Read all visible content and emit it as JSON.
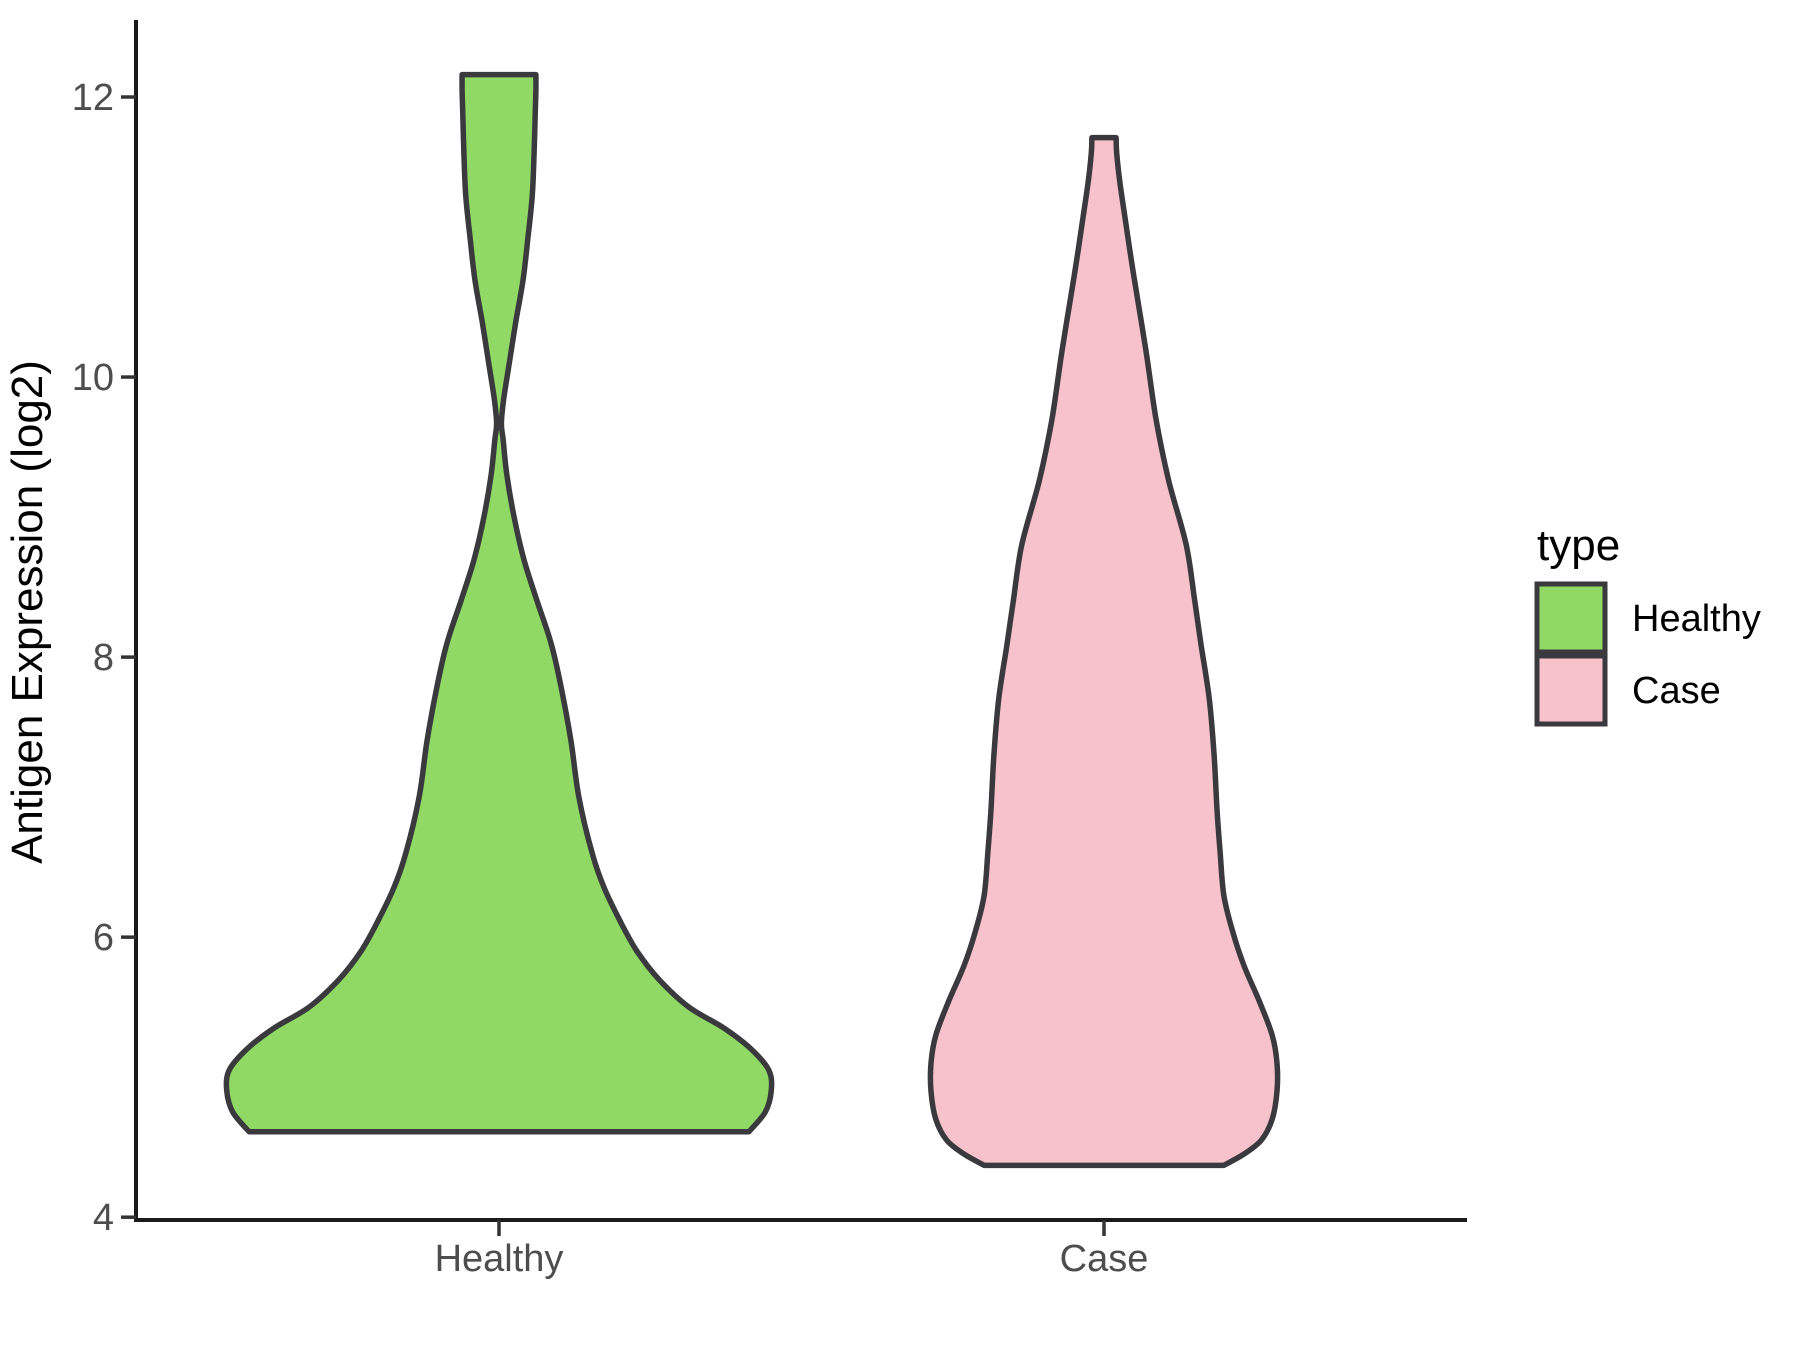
{
  "chart_data": {
    "type": "violin",
    "title": "",
    "xlabel": "",
    "ylabel": "Antigen Expression (log2)",
    "categories": [
      "Healthy",
      "Case"
    ],
    "y_ticks": [
      4,
      6,
      8,
      10,
      12
    ],
    "ylim": [
      3.98,
      12.55
    ],
    "xlim": [
      0.4,
      2.6
    ],
    "grid": "off",
    "colors": {
      "outline": "#3A3A3E",
      "axis_line": "#1A1A1A",
      "tick_label": "#4D4D4D",
      "text": "#000000",
      "background": "#FFFFFF"
    },
    "legend": {
      "title": "type",
      "position": "right",
      "entries": [
        {
          "label": "Healthy",
          "fill": "#90D964"
        },
        {
          "label": "Case",
          "fill": "#F8C2CC"
        }
      ]
    },
    "series": [
      {
        "name": "Healthy",
        "x": 1,
        "fill": "#90D964",
        "y_range": [
          4.61,
          12.16
        ],
        "profile": [
          [
            4.61,
            0.413
          ],
          [
            4.75,
            0.44
          ],
          [
            4.9,
            0.45
          ],
          [
            5.05,
            0.446
          ],
          [
            5.2,
            0.417
          ],
          [
            5.35,
            0.372
          ],
          [
            5.5,
            0.314
          ],
          [
            5.7,
            0.264
          ],
          [
            5.9,
            0.228
          ],
          [
            6.1,
            0.202
          ],
          [
            6.35,
            0.174
          ],
          [
            6.6,
            0.154
          ],
          [
            7.0,
            0.132
          ],
          [
            7.4,
            0.119
          ],
          [
            7.8,
            0.102
          ],
          [
            8.1,
            0.086
          ],
          [
            8.4,
            0.063
          ],
          [
            8.7,
            0.041
          ],
          [
            9.0,
            0.025
          ],
          [
            9.3,
            0.013
          ],
          [
            9.55,
            0.007
          ],
          [
            9.67,
            0.004
          ],
          [
            9.85,
            0.008
          ],
          [
            10.1,
            0.017
          ],
          [
            10.4,
            0.028
          ],
          [
            10.7,
            0.04
          ],
          [
            11.0,
            0.048
          ],
          [
            11.3,
            0.055
          ],
          [
            11.6,
            0.058
          ],
          [
            11.9,
            0.06
          ],
          [
            12.05,
            0.061
          ],
          [
            12.16,
            0.061
          ]
        ]
      },
      {
        "name": "Case",
        "x": 2,
        "fill": "#F8C2CC",
        "y_range": [
          4.37,
          11.71
        ],
        "profile": [
          [
            4.37,
            0.198
          ],
          [
            4.45,
            0.231
          ],
          [
            4.55,
            0.26
          ],
          [
            4.7,
            0.278
          ],
          [
            4.9,
            0.286
          ],
          [
            5.1,
            0.286
          ],
          [
            5.3,
            0.278
          ],
          [
            5.55,
            0.256
          ],
          [
            5.8,
            0.231
          ],
          [
            6.05,
            0.212
          ],
          [
            6.3,
            0.198
          ],
          [
            6.6,
            0.192
          ],
          [
            6.9,
            0.187
          ],
          [
            7.3,
            0.182
          ],
          [
            7.7,
            0.174
          ],
          [
            8.1,
            0.16
          ],
          [
            8.4,
            0.15
          ],
          [
            8.8,
            0.136
          ],
          [
            9.26,
            0.107
          ],
          [
            9.7,
            0.086
          ],
          [
            10.2,
            0.069
          ],
          [
            10.7,
            0.05
          ],
          [
            11.1,
            0.036
          ],
          [
            11.4,
            0.026
          ],
          [
            11.6,
            0.021
          ],
          [
            11.71,
            0.02
          ]
        ]
      }
    ]
  }
}
